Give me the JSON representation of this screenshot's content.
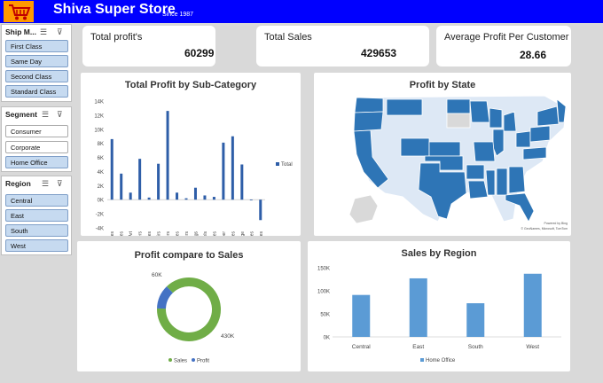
{
  "header": {
    "title": "Shiva Super Store",
    "since": "Since 1987",
    "logo_icon": "cart-icon"
  },
  "kpis": {
    "total_profit": {
      "label": "Total profit's",
      "value": "60299"
    },
    "total_sales": {
      "label": "Total Sales",
      "value": "429653"
    },
    "avg_profit": {
      "label": "Average Profit Per Customer",
      "value": "28.66"
    }
  },
  "slicers": {
    "ship_mode": {
      "title": "Ship M...",
      "items": [
        "First Class",
        "Same Day",
        "Second Class",
        "Standard Class"
      ],
      "selected": [
        true,
        true,
        true,
        true
      ]
    },
    "segment": {
      "title": "Segment",
      "items": [
        "Consumer",
        "Corporate",
        "Home Office"
      ],
      "selected": [
        false,
        false,
        true
      ]
    },
    "region": {
      "title": "Region",
      "items": [
        "Central",
        "East",
        "South",
        "West"
      ],
      "selected": [
        true,
        true,
        true,
        true
      ]
    }
  },
  "colors": {
    "header": "#0000ff",
    "accent": "#4472c4",
    "bar": "#5b9bd5",
    "donut_green": "#70ad47",
    "selected": "#c6daf0"
  },
  "chart_data": [
    {
      "type": "bar",
      "title": "Total Profit by Sub-Category",
      "categories": [
        "Accessories",
        "Appliances",
        "Art",
        "Binders",
        "Bookcases",
        "Chairs",
        "Copiers",
        "Envelopes",
        "Fasteners",
        "Furnishings",
        "Labels",
        "Machines",
        "Paper",
        "Phones",
        "Storage",
        "Supplies",
        "Tables"
      ],
      "series": [
        {
          "name": "Total",
          "values": [
            8600,
            3700,
            1000,
            5800,
            300,
            5100,
            12600,
            1000,
            200,
            1700,
            600,
            400,
            8100,
            9000,
            5000,
            -100,
            -2900
          ]
        }
      ],
      "yticks": [
        "-4K",
        "-2K",
        "0K",
        "2K",
        "4K",
        "6K",
        "8K",
        "10K",
        "12K",
        "14K"
      ],
      "ylim": [
        -4000,
        14000
      ],
      "legend": "right"
    },
    {
      "type": "map",
      "title": "Profit by State",
      "attribution": [
        "Powered by Bing",
        "© GeoNames, Microsoft, TomTom"
      ]
    },
    {
      "type": "pie",
      "title": "Profit compare to Sales",
      "labels": [
        "Sales",
        "Profit"
      ],
      "values": [
        430000,
        60000
      ],
      "data_labels": [
        "430K",
        "60K"
      ],
      "legend": "bottom"
    },
    {
      "type": "bar",
      "title": "Sales by Region",
      "categories": [
        "Central",
        "East",
        "South",
        "West"
      ],
      "series": [
        {
          "name": "Home Office",
          "values": [
            91000,
            127000,
            73000,
            137000
          ]
        }
      ],
      "yticks": [
        "0K",
        "50K",
        "100K",
        "150K"
      ],
      "ylim": [
        0,
        150000
      ],
      "legend": "bottom"
    }
  ]
}
